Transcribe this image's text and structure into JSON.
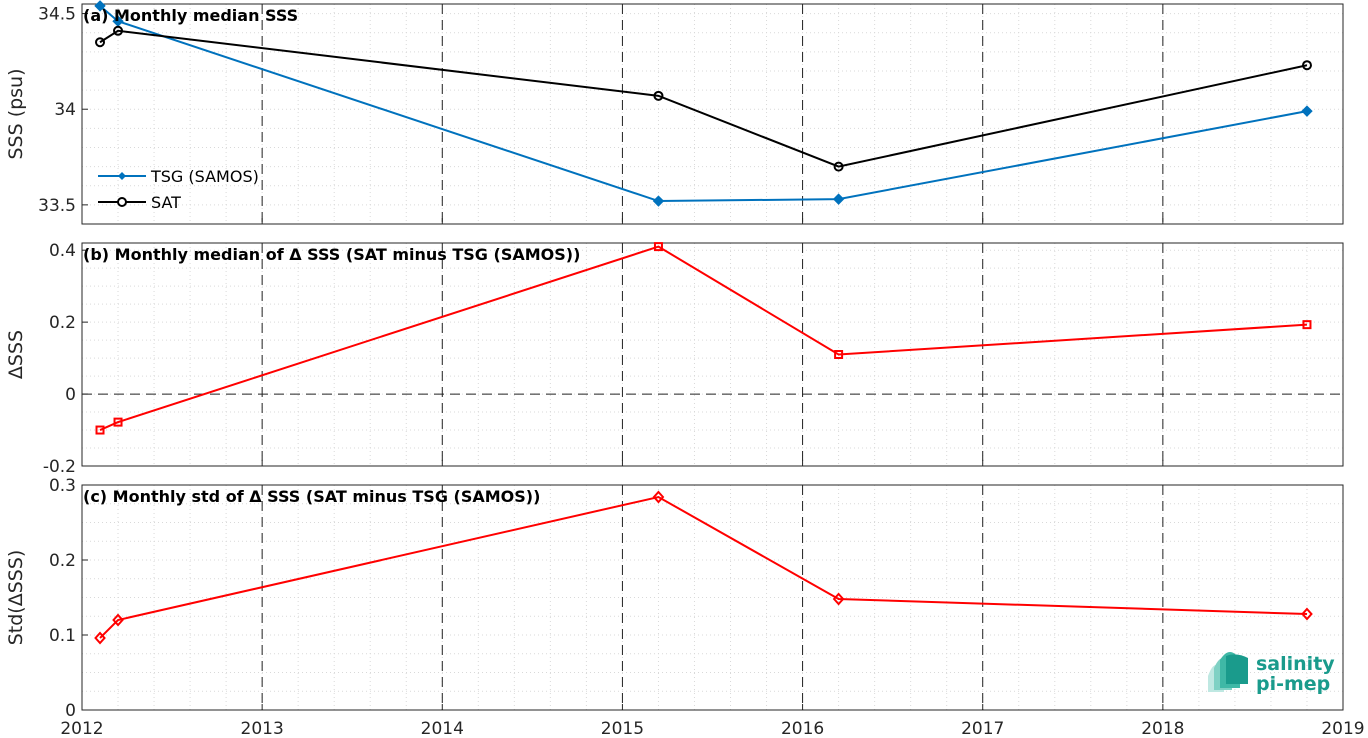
{
  "chart_data": [
    {
      "type": "line",
      "title": "(a) Monthly median SSS",
      "ylabel": "SSS (psu)",
      "xlim": [
        2012,
        2019
      ],
      "ylim": [
        33.4,
        34.55
      ],
      "yticks": [
        "34.5",
        "34",
        "33.5"
      ],
      "xticks": [
        "2012",
        "2013",
        "2014",
        "2015",
        "2016",
        "2017",
        "2018",
        "2019"
      ],
      "grid": true,
      "legend_placement": "lower-left",
      "series": [
        {
          "name": "TSG (SAMOS)",
          "color": "#0072bd",
          "marker": "filled-diamond",
          "x": [
            2012.1,
            2012.2,
            2015.2,
            2016.2,
            2018.8
          ],
          "y": [
            34.54,
            34.46,
            33.52,
            33.53,
            33.99
          ]
        },
        {
          "name": "SAT",
          "color": "#000000",
          "marker": "open-circle",
          "x": [
            2012.1,
            2012.2,
            2015.2,
            2016.2,
            2018.8
          ],
          "y": [
            34.35,
            34.41,
            34.07,
            33.7,
            34.23
          ]
        }
      ]
    },
    {
      "type": "line",
      "title": "(b) Monthly median of Δ SSS (SAT minus TSG (SAMOS))",
      "ylabel": "ΔSSS",
      "xlim": [
        2012,
        2019
      ],
      "ylim": [
        -0.2,
        0.42
      ],
      "yticks": [
        "0.4",
        "0.2",
        "0",
        "-0.2"
      ],
      "xticks": [
        "2012",
        "2013",
        "2014",
        "2015",
        "2016",
        "2017",
        "2018",
        "2019"
      ],
      "grid": true,
      "series": [
        {
          "color": "#ff0000",
          "marker": "open-square",
          "x": [
            2012.1,
            2012.2,
            2015.2,
            2016.2,
            2018.8
          ],
          "y": [
            -0.1,
            -0.078,
            0.41,
            0.11,
            0.193
          ]
        }
      ]
    },
    {
      "type": "line",
      "title": "(c) Monthly std of Δ SSS (SAT minus TSG (SAMOS))",
      "ylabel": "Std(ΔSSS)",
      "xlim": [
        2012,
        2019
      ],
      "ylim": [
        0,
        0.3
      ],
      "yticks": [
        "0.3",
        "0.2",
        "0.1",
        "0"
      ],
      "xticks": [
        "2012",
        "2013",
        "2014",
        "2015",
        "2016",
        "2017",
        "2018",
        "2019"
      ],
      "grid": true,
      "series": [
        {
          "color": "#ff0000",
          "marker": "open-diamond",
          "x": [
            2012.1,
            2012.2,
            2015.2,
            2016.2,
            2018.8
          ],
          "y": [
            0.096,
            0.12,
            0.284,
            0.148,
            0.128
          ]
        }
      ]
    }
  ],
  "logo": {
    "line1": "salinity",
    "line2": "pi-mep"
  }
}
